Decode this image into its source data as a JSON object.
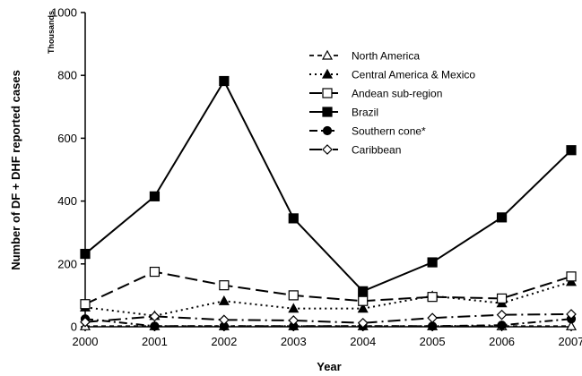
{
  "chart_data": {
    "type": "line",
    "title": "",
    "xlabel": "Year",
    "ylabel": "Number of DF + DHF reported cases",
    "yunits": "Thousands",
    "ylim": [
      0,
      1000
    ],
    "yticks": [
      "0",
      "200",
      "400",
      "600",
      "800",
      "1000"
    ],
    "categories": [
      "2000",
      "2001",
      "2002",
      "2003",
      "2004",
      "2005",
      "2006",
      "2007"
    ],
    "legend_position": "top-right",
    "grid": false,
    "series": [
      {
        "name": "North America",
        "marker": "open-triangle",
        "dash": "short-dash",
        "values": [
          2,
          2,
          2,
          2,
          2,
          2,
          2,
          2
        ]
      },
      {
        "name": "Central America & Mexico",
        "marker": "filled-triangle",
        "dash": "dotted",
        "values": [
          62,
          35,
          82,
          58,
          58,
          98,
          75,
          143
        ]
      },
      {
        "name": "Andean sub-region",
        "marker": "open-square",
        "dash": "long-dash",
        "values": [
          72,
          175,
          132,
          100,
          82,
          95,
          90,
          160
        ]
      },
      {
        "name": "Brazil",
        "marker": "filled-square",
        "dash": "solid",
        "values": [
          232,
          415,
          782,
          345,
          113,
          205,
          348,
          562
        ]
      },
      {
        "name": "Southern cone*",
        "marker": "filled-circle",
        "dash": "dash-dot",
        "values": [
          25,
          2,
          2,
          2,
          2,
          2,
          5,
          25
        ]
      },
      {
        "name": "Caribbean",
        "marker": "open-diamond",
        "dash": "long-dash-dot",
        "values": [
          15,
          33,
          22,
          20,
          12,
          28,
          38,
          40
        ]
      }
    ]
  }
}
